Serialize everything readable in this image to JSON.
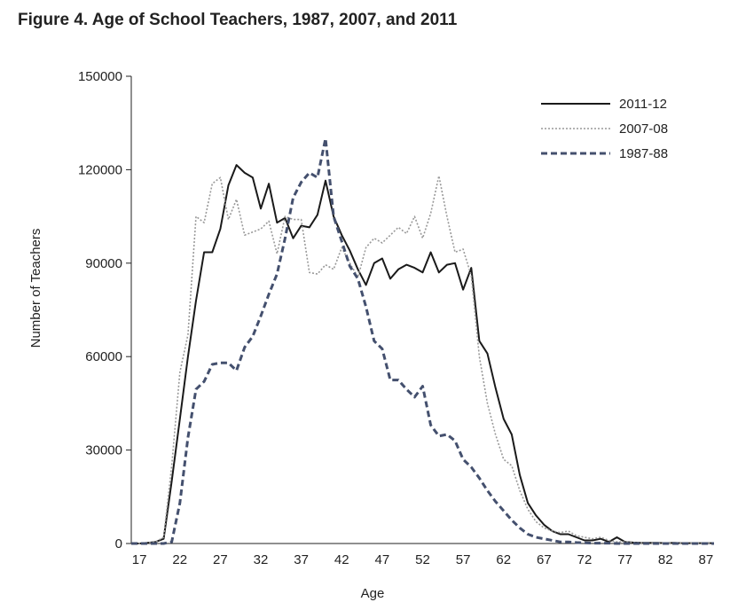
{
  "chart_data": {
    "type": "line",
    "title": "Figure 4. Age of School Teachers, 1987, 2007, and 2011",
    "x_label": "Age",
    "y_label": "Number of Teachers",
    "x": [
      16,
      17,
      18,
      19,
      20,
      21,
      22,
      23,
      24,
      25,
      26,
      27,
      28,
      29,
      30,
      31,
      32,
      33,
      34,
      35,
      36,
      37,
      38,
      39,
      40,
      41,
      42,
      43,
      44,
      45,
      46,
      47,
      48,
      49,
      50,
      51,
      52,
      53,
      54,
      55,
      56,
      57,
      58,
      59,
      60,
      61,
      62,
      63,
      64,
      65,
      66,
      67,
      68,
      69,
      70,
      71,
      72,
      73,
      74,
      75,
      76,
      77,
      78,
      79,
      80,
      81,
      82,
      83,
      84,
      85,
      86,
      87,
      88
    ],
    "series": [
      {
        "name": "2011-12",
        "color": "#1a1a1a",
        "values": [
          0,
          0,
          200,
          500,
          1500,
          20000,
          40000,
          60000,
          78000,
          93500,
          93500,
          101000,
          115000,
          121500,
          119000,
          117500,
          107500,
          115500,
          103000,
          104500,
          98000,
          102000,
          101500,
          105500,
          116500,
          105000,
          99000,
          94000,
          88000,
          83000,
          90000,
          91500,
          85000,
          88000,
          89500,
          88500,
          87000,
          93500,
          87000,
          89500,
          90000,
          81500,
          88500,
          65000,
          61000,
          50000,
          40000,
          35000,
          22000,
          13000,
          9000,
          6000,
          4000,
          3000,
          3000,
          2000,
          1000,
          1000,
          1500,
          500,
          2000,
          500,
          300,
          200,
          200,
          200,
          100,
          200,
          100,
          100,
          100,
          100,
          100
        ]
      },
      {
        "name": "2007-08",
        "color": "#999999",
        "values": [
          0,
          0,
          200,
          500,
          2000,
          25000,
          55000,
          67000,
          105000,
          103000,
          115500,
          117500,
          104000,
          110500,
          99000,
          100000,
          101000,
          103500,
          93000,
          105000,
          104000,
          104000,
          87000,
          86500,
          89500,
          88000,
          95000,
          90000,
          85500,
          95000,
          98000,
          96500,
          99000,
          101500,
          99500,
          105000,
          98000,
          106000,
          118000,
          105000,
          93500,
          94500,
          86000,
          60000,
          45000,
          35000,
          27000,
          25000,
          17000,
          11000,
          7000,
          5000,
          4000,
          3500,
          4000,
          2500,
          2000,
          1500,
          2000,
          1000,
          500,
          500,
          300,
          200,
          200,
          100,
          100,
          200,
          100,
          100,
          100,
          100,
          100
        ]
      },
      {
        "name": "1987-88",
        "color": "#44506e",
        "values": [
          0,
          0,
          0,
          0,
          0,
          500,
          13000,
          34000,
          49500,
          52000,
          57500,
          58000,
          58000,
          55500,
          63000,
          66500,
          73000,
          80000,
          86500,
          98000,
          111000,
          116000,
          119000,
          117500,
          130000,
          105000,
          97000,
          89000,
          85000,
          76000,
          65000,
          62500,
          52500,
          52500,
          49500,
          47000,
          50500,
          38000,
          34500,
          35000,
          33000,
          27000,
          24500,
          21000,
          17000,
          13500,
          10500,
          7500,
          5000,
          3000,
          2000,
          1500,
          1000,
          500,
          500,
          300,
          200,
          100,
          100,
          100,
          0,
          0,
          0,
          0,
          0,
          0,
          0,
          0,
          0,
          0,
          0,
          0,
          0
        ]
      }
    ],
    "xlim": [
      16,
      88
    ],
    "xticks": [
      17,
      22,
      27,
      32,
      37,
      42,
      47,
      52,
      57,
      62,
      67,
      72,
      77,
      82,
      87
    ],
    "ylim": [
      0,
      150000
    ],
    "yticks": [
      0,
      30000,
      60000,
      90000,
      120000,
      150000
    ]
  }
}
